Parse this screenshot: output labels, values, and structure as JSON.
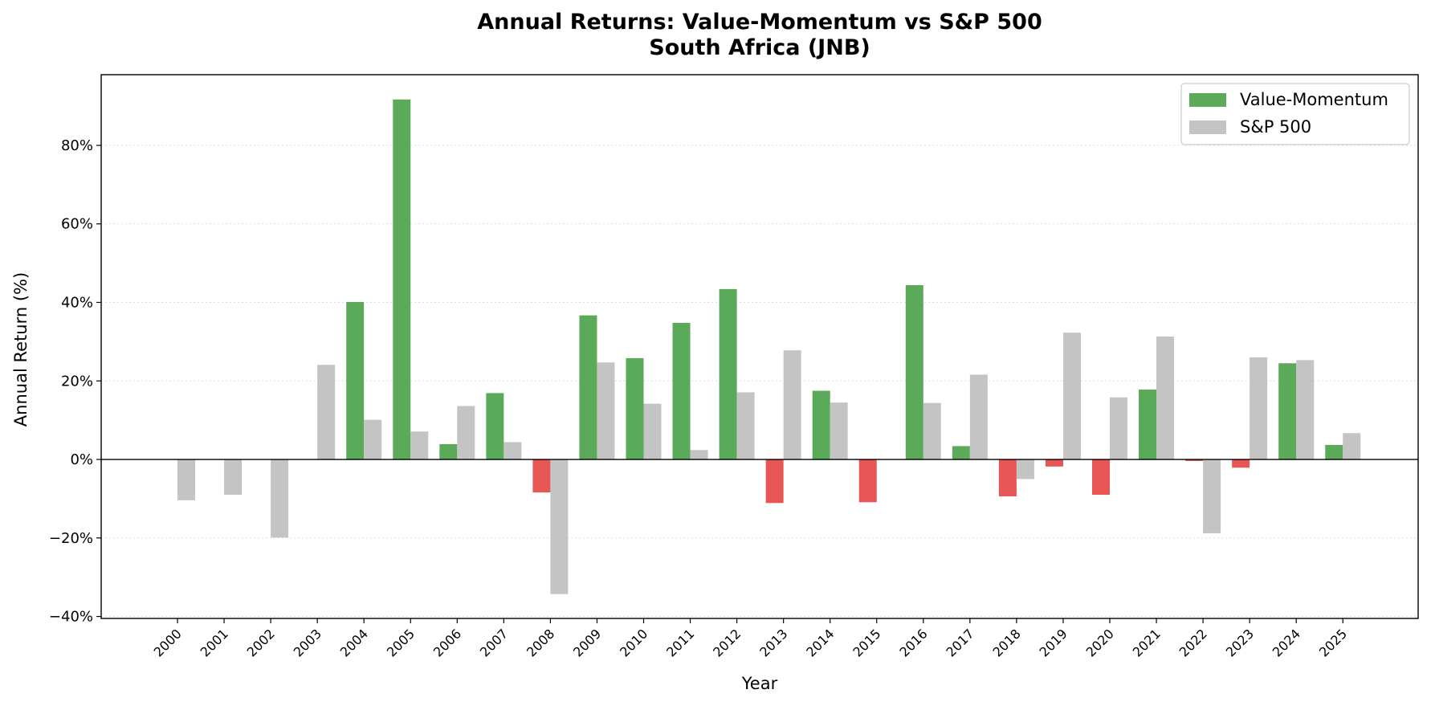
{
  "chart_data": {
    "type": "bar",
    "title": "Annual Returns: Value-Momentum vs S&P 500",
    "subtitle": "South Africa (JNB)",
    "xlabel": "Year",
    "ylabel": "Annual Return (%)",
    "ylim": [
      -40.5,
      98
    ],
    "yticks": [
      -40,
      -20,
      0,
      20,
      40,
      60,
      80
    ],
    "ytick_labels": [
      "−40%",
      "−20%",
      "0%",
      "20%",
      "40%",
      "60%",
      "80%"
    ],
    "grid": "horizontal dotted",
    "legend_position": "top-right",
    "categories": [
      "2000",
      "2001",
      "2002",
      "2003",
      "2004",
      "2005",
      "2006",
      "2007",
      "2008",
      "2009",
      "2010",
      "2011",
      "2012",
      "2013",
      "2014",
      "2015",
      "2016",
      "2017",
      "2018",
      "2019",
      "2020",
      "2021",
      "2022",
      "2023",
      "2024",
      "2025"
    ],
    "series": [
      {
        "name": "Value-Momentum",
        "color": "#5aaa5a",
        "negative_color": "#e85555",
        "values": [
          null,
          null,
          null,
          null,
          40.1,
          91.7,
          3.9,
          16.9,
          -8.4,
          36.7,
          25.8,
          34.8,
          43.4,
          -11.1,
          17.5,
          -10.9,
          44.4,
          3.4,
          -9.4,
          -1.8,
          -9.0,
          17.8,
          -0.4,
          -2.1,
          24.5,
          3.7
        ]
      },
      {
        "name": "S&P 500",
        "color": "#c4c4c4",
        "values": [
          -10.4,
          -9.0,
          -19.9,
          24.1,
          10.1,
          7.1,
          13.6,
          4.4,
          -34.3,
          24.7,
          14.2,
          2.4,
          17.1,
          27.8,
          14.5,
          null,
          14.4,
          21.6,
          -5.0,
          32.3,
          15.8,
          31.3,
          -18.8,
          26.0,
          25.3,
          6.7
        ]
      }
    ]
  }
}
